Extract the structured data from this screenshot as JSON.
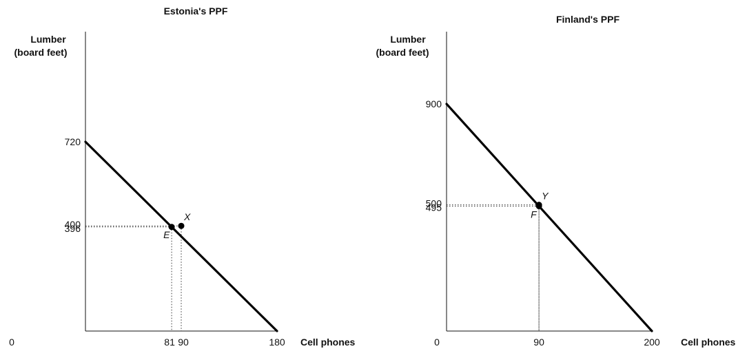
{
  "chart_data": [
    {
      "type": "line",
      "title": "Estonia's PPF",
      "ylabel_lines": [
        "Lumber",
        "(board feet)"
      ],
      "xlabel": "Cell phones",
      "origin_label": "0",
      "xlim": [
        0,
        180
      ],
      "ylim": [
        0,
        720
      ],
      "x_ticks": [
        "81",
        "90",
        "180"
      ],
      "y_ticks": [
        "720",
        "400",
        "396"
      ],
      "ppf": {
        "x": [
          0,
          180
        ],
        "y": [
          720,
          0
        ]
      },
      "points": [
        {
          "name": "E",
          "x": 81,
          "y": 396
        },
        {
          "name": "X",
          "x": 90,
          "y": 400
        }
      ]
    },
    {
      "type": "line",
      "title": "Finland's PPF",
      "ylabel_lines": [
        "Lumber",
        "(board feet)"
      ],
      "xlabel": "Cell phones",
      "origin_label": "0",
      "xlim": [
        0,
        200
      ],
      "ylim": [
        0,
        900
      ],
      "x_ticks": [
        "90",
        "200"
      ],
      "y_ticks": [
        "900",
        "500",
        "495"
      ],
      "ppf": {
        "x": [
          0,
          200
        ],
        "y": [
          900,
          0
        ]
      },
      "points": [
        {
          "name": "F",
          "x": 90,
          "y": 495
        },
        {
          "name": "Y",
          "x": 90,
          "y": 500
        }
      ]
    }
  ]
}
